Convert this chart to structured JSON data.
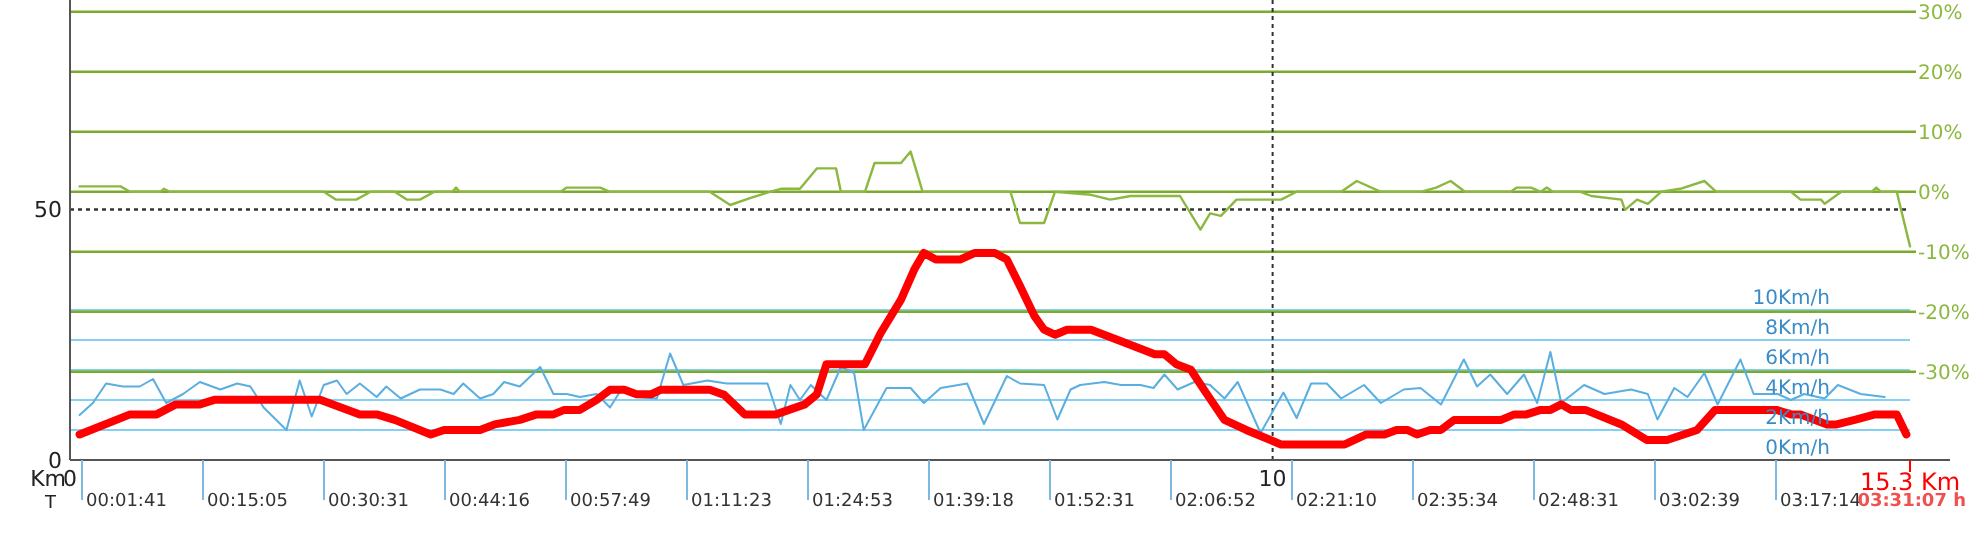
{
  "chart_data": {
    "type": "line",
    "xlabel": "Km",
    "x2label": "T",
    "xlim": [
      0,
      15.3
    ],
    "xticks": [
      0,
      10,
      {
        "value": 15.3,
        "label": "15.3 Km"
      }
    ],
    "annotations": [
      "00:01:41",
      "00:15:05",
      "00:30:31",
      "00:44:16",
      "00:57:49",
      "01:11:23",
      "01:24:53",
      "01:39:18",
      "01:52:31",
      "02:06:52",
      "02:21:10",
      "02:35:34",
      "02:48:31",
      "03:02:39",
      "03:17:14",
      "03:31:07 h"
    ],
    "ylim": [
      0,
      91
    ],
    "yticks": [
      0,
      50
    ],
    "y2lim": [
      -44.7,
      31.3
    ],
    "y2ticks": [
      {
        "value": -30,
        "label": "-30%"
      },
      {
        "value": -20,
        "label": "-20%"
      },
      {
        "value": -10,
        "label": "-10%"
      },
      {
        "value": 0,
        "label": "0%"
      },
      {
        "value": 10,
        "label": "10%"
      },
      {
        "value": 20,
        "label": "20%"
      },
      {
        "value": 30,
        "label": "30%"
      }
    ],
    "y3lim": [
      0,
      30.4
    ],
    "y3ticks": [
      {
        "value": 0,
        "label": "0Km/h"
      },
      {
        "value": 2,
        "label": "2Km/h"
      },
      {
        "value": 4,
        "label": "4Km/h"
      },
      {
        "value": 6,
        "label": "6Km/h"
      },
      {
        "value": 8,
        "label": "8Km/h"
      },
      {
        "value": 10,
        "label": "10Km/h"
      }
    ],
    "grid": "y",
    "marker": "none",
    "line_style": "solid",
    "series": [
      {
        "axis": "y2",
        "color": "#8cb840",
        "x": [
          0.08,
          0.42,
          0.5,
          0.75,
          0.78,
          0.83,
          2.11,
          2.21,
          2.38,
          2.5,
          2.7,
          2.8,
          2.91,
          3.03,
          3.18,
          3.21,
          3.24,
          4.08,
          4.13,
          4.41,
          4.49,
          5.32,
          5.49,
          5.66,
          5.82,
          5.91,
          6.07,
          6.21,
          6.37,
          6.41,
          6.61,
          6.69,
          6.91,
          6.99,
          7.09,
          7.82,
          7.9,
          8.1,
          8.19,
          8.49,
          8.65,
          8.82,
          9.23,
          9.4,
          9.48,
          9.57,
          9.7,
          10.07,
          10.2,
          10.57,
          10.7,
          10.9,
          11.23,
          11.36,
          11.48,
          11.6,
          11.98,
          12.03,
          12.15,
          12.23,
          12.28,
          12.33,
          12.56,
          12.65,
          12.9,
          12.93,
          13.03,
          13.12,
          13.23,
          13.39,
          13.59,
          13.69,
          14.31,
          14.39,
          14.56,
          14.59,
          14.73,
          14.98,
          15.02,
          15.06,
          15.19,
          15.3
        ],
        "values": [
          0.9,
          0.9,
          0,
          0,
          0.5,
          0,
          0,
          -1.3,
          -1.3,
          0,
          0,
          -1.3,
          -1.3,
          0,
          0,
          0.7,
          0,
          0,
          0.7,
          0.7,
          0,
          0,
          -2.2,
          -1,
          0,
          0.5,
          0.5,
          3.9,
          3.9,
          0,
          0,
          4.8,
          4.8,
          6.7,
          0,
          0,
          -5.2,
          -5.2,
          0,
          -0.5,
          -1.3,
          -0.7,
          -0.7,
          -6.3,
          -3.6,
          -4,
          -1.3,
          -1.3,
          0,
          0,
          1.8,
          0,
          0,
          0.7,
          1.8,
          0,
          0,
          0.7,
          0.7,
          0,
          0.7,
          0,
          0,
          -0.7,
          -1.3,
          -3,
          -1.3,
          -2,
          0,
          0.5,
          1.8,
          0,
          0,
          -1.3,
          -1.3,
          -2,
          0,
          0,
          0.7,
          0,
          0,
          -9.1
        ]
      },
      {
        "axis": "y3",
        "color": "#5aaee0",
        "x": [
          0.08,
          0.19,
          0.3,
          0.44,
          0.58,
          0.69,
          0.8,
          0.94,
          1.08,
          1.25,
          1.39,
          1.5,
          1.61,
          1.8,
          1.91,
          2.01,
          2.11,
          2.22,
          2.3,
          2.41,
          2.55,
          2.63,
          2.75,
          2.91,
          3.08,
          3.19,
          3.27,
          3.41,
          3.52,
          3.61,
          3.74,
          3.91,
          4.02,
          4.13,
          4.24,
          4.38,
          4.49,
          4.6,
          4.71,
          4.88,
          4.99,
          5.1,
          5.3,
          5.46,
          5.8,
          5.91,
          5.99,
          6.07,
          6.16,
          6.29,
          6.41,
          6.52,
          6.6,
          6.79,
          6.99,
          7.1,
          7.24,
          7.46,
          7.6,
          7.79,
          7.9,
          8.1,
          8.21,
          8.32,
          8.4,
          8.6,
          8.74,
          8.9,
          9.01,
          9.1,
          9.21,
          9.35,
          9.48,
          9.6,
          9.71,
          9.9,
          10.09,
          10.2,
          10.32,
          10.45,
          10.57,
          10.76,
          10.9,
          11.09,
          11.23,
          11.4,
          11.59,
          11.7,
          11.81,
          11.95,
          12.09,
          12.2,
          12.31,
          12.4,
          12.59,
          12.76,
          12.98,
          13.12,
          13.2,
          13.34,
          13.45,
          13.59,
          13.7,
          13.89,
          14.0,
          14.2,
          14.31,
          14.42,
          14.59,
          14.7,
          14.89,
          15.09
        ],
        "values": [
          3.0,
          3.8,
          5.1,
          4.9,
          4.9,
          5.4,
          3.8,
          4.4,
          5.2,
          4.7,
          5.1,
          4.9,
          3.5,
          2.0,
          5.3,
          2.9,
          5.0,
          5.3,
          4.4,
          5.1,
          4.2,
          4.9,
          4.1,
          4.7,
          4.7,
          4.4,
          5.1,
          4.1,
          4.4,
          5.2,
          4.9,
          6.2,
          4.4,
          4.4,
          4.2,
          4.4,
          3.5,
          4.9,
          4.2,
          4.1,
          7.1,
          5.0,
          5.3,
          5.1,
          5.1,
          2.4,
          5.0,
          4.0,
          5.0,
          4.0,
          6.2,
          5.8,
          2.0,
          4.8,
          4.8,
          3.8,
          4.8,
          5.1,
          2.4,
          5.6,
          5.1,
          5.0,
          2.7,
          4.7,
          5.0,
          5.2,
          5.0,
          5.0,
          4.8,
          5.7,
          4.7,
          5.2,
          5.0,
          4.1,
          5.2,
          1.8,
          4.5,
          2.8,
          5.1,
          5.1,
          4.1,
          5.0,
          3.8,
          4.7,
          4.8,
          3.7,
          6.7,
          4.9,
          5.7,
          4.4,
          5.7,
          3.8,
          7.2,
          3.8,
          5.0,
          4.4,
          4.7,
          4.4,
          2.7,
          4.8,
          4.2,
          5.8,
          3.7,
          6.7,
          4.4,
          4.4,
          4.0,
          4.4,
          4.1,
          5.0,
          4.4,
          4.2
        ]
      },
      {
        "axis": "y",
        "color": "#ff0000",
        "x": [
          0.08,
          0.5,
          0.72,
          0.88,
          1.08,
          1.2,
          2.08,
          2.41,
          2.55,
          2.7,
          3.0,
          3.11,
          3.41,
          3.53,
          3.74,
          3.88,
          4.02,
          4.11,
          4.24,
          4.38,
          4.49,
          4.61,
          4.71,
          4.83,
          4.91,
          5.32,
          5.44,
          5.61,
          5.87,
          6.11,
          6.21,
          6.29,
          6.61,
          6.74,
          6.91,
          7.02,
          7.1,
          7.2,
          7.4,
          7.52,
          7.69,
          7.79,
          7.9,
          8.02,
          8.1,
          8.19,
          8.29,
          8.49,
          8.74,
          9.02,
          9.1,
          9.2,
          9.32,
          9.43,
          9.6,
          9.78,
          10.07,
          10.6,
          10.78,
          10.93,
          11.03,
          11.12,
          11.2,
          11.31,
          11.4,
          11.51,
          11.9,
          12.01,
          12.11,
          12.23,
          12.31,
          12.4,
          12.48,
          12.6,
          12.9,
          13.11,
          13.28,
          13.53,
          13.68,
          14.19,
          14.31,
          14.39,
          14.61,
          14.69,
          14.84,
          15.01,
          15.19,
          15.27
        ],
        "values": [
          5.1,
          9.1,
          9.1,
          11.1,
          11.1,
          12,
          12,
          9.1,
          9.1,
          8,
          5.1,
          6,
          6,
          7.1,
          8,
          9.1,
          9.1,
          10,
          10,
          12,
          14,
          14,
          13.1,
          13.1,
          14,
          14,
          13,
          9.1,
          9.1,
          11.1,
          13.1,
          19.1,
          19.1,
          25.3,
          32,
          38,
          41.3,
          40,
          40,
          41.3,
          41.3,
          40,
          34.7,
          28.7,
          26,
          25,
          26,
          26,
          23.7,
          21.1,
          21.1,
          19.1,
          18,
          14,
          8,
          6,
          3.1,
          3.1,
          5.1,
          5.1,
          6,
          6,
          5.1,
          6,
          6,
          8,
          8,
          9.1,
          9.1,
          10,
          10,
          11.1,
          10,
          10,
          7.1,
          4,
          4,
          6,
          10,
          10,
          9.1,
          9.1,
          7.1,
          7.1,
          8,
          9.1,
          9.1,
          5.1
        ]
      }
    ],
    "ref_lines": [
      {
        "axis": "x",
        "value": 10,
        "line_style": "dotted"
      },
      {
        "axis": "y",
        "value": 50,
        "line_style": "dotted"
      }
    ]
  }
}
